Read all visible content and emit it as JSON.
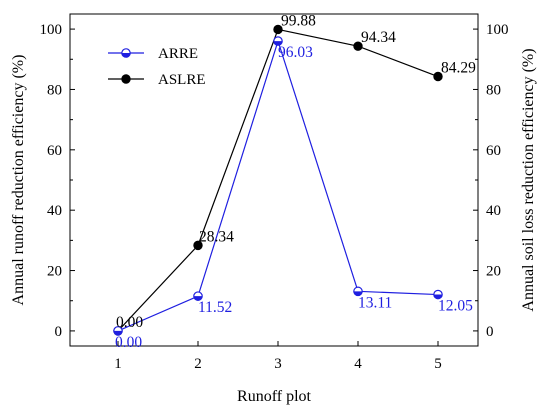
{
  "chart_data": {
    "type": "line",
    "categories": [
      "1",
      "2",
      "3",
      "4",
      "5"
    ],
    "series": [
      {
        "name": "ARRE",
        "color": "#1f1fe0",
        "marker": "half-filled-circle",
        "axis": "left",
        "values": [
          0.0,
          11.52,
          96.03,
          13.11,
          12.05
        ],
        "labels": [
          "0.00",
          "11.52",
          "96.03",
          "13.11",
          "12.05"
        ]
      },
      {
        "name": "ASLRE",
        "color": "#000000",
        "marker": "filled-circle",
        "axis": "right",
        "values": [
          0.0,
          28.34,
          99.88,
          94.34,
          84.29
        ],
        "labels": [
          "0.00",
          "28.34",
          "99.88",
          "94.34",
          "84.29"
        ]
      }
    ],
    "xlabel": "Runoff plot",
    "ylabel_left": "Annual runoff reduction efficiency (%)",
    "ylabel_right": "Annual soil loss reduction efficiency (%)",
    "xlim": [
      0.4,
      5.5
    ],
    "ylim": [
      -5,
      105
    ],
    "yticks": [
      0,
      20,
      40,
      60,
      80,
      100
    ],
    "grid": false,
    "legend_position": "top-left"
  }
}
